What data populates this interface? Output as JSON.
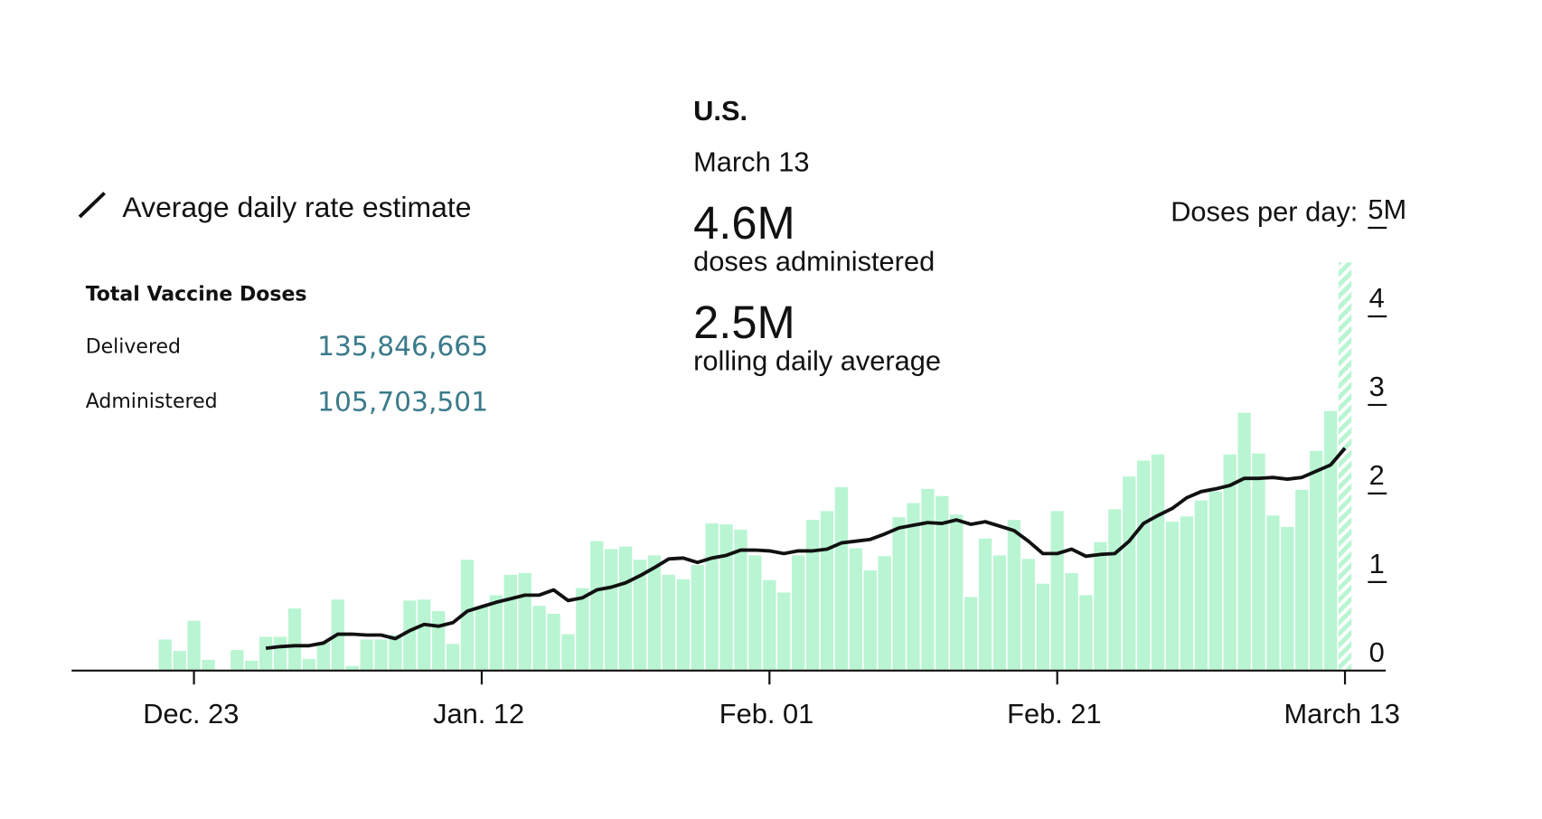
{
  "chart_data": {
    "type": "bar",
    "legend": "Average daily rate estimate",
    "summary": {
      "title": "Total Vaccine Doses",
      "rows": [
        [
          "Delivered",
          "135,846,665"
        ],
        [
          "Administered",
          "105,703,501"
        ]
      ]
    },
    "tooltip": {
      "region": "U.S.",
      "date": "March 13",
      "items": [
        {
          "value": "4.6M",
          "label": "doses administered"
        },
        {
          "value": "2.5M",
          "label": "rolling daily average"
        }
      ]
    },
    "y_label": "Doses per day:",
    "categories": [
      null,
      null,
      "Dec. 23",
      null,
      null,
      null,
      null,
      null,
      null,
      null,
      null,
      null,
      null,
      null,
      null,
      null,
      null,
      null,
      null,
      null,
      null,
      null,
      "Jan. 12",
      null,
      null,
      null,
      null,
      null,
      null,
      null,
      null,
      null,
      null,
      null,
      null,
      null,
      null,
      null,
      null,
      null,
      null,
      null,
      "Feb. 01",
      null,
      null,
      null,
      null,
      null,
      null,
      null,
      null,
      null,
      null,
      null,
      null,
      null,
      null,
      null,
      null,
      null,
      null,
      null,
      "Feb. 21",
      null,
      null,
      null,
      null,
      null,
      null,
      null,
      null,
      null,
      null,
      null,
      null,
      null,
      null,
      null,
      null,
      null,
      null,
      null,
      "March 13"
    ],
    "series": [
      {
        "type": "bar",
        "color": "#b9f5d3",
        "hatch_last": true,
        "values": [
          0.34,
          0.21,
          0.55,
          0.11,
          0,
          0.22,
          0.1,
          0.37,
          0.37,
          0.69,
          0.12,
          0.31,
          0.79,
          0.04,
          0.34,
          0.34,
          0.39,
          0.78,
          0.79,
          0.66,
          0.29,
          1.24,
          0.71,
          0.84,
          1.07,
          1.09,
          0.72,
          0.63,
          0.4,
          0.92,
          1.45,
          1.36,
          1.39,
          1.24,
          1.29,
          1.07,
          1.02,
          1.18,
          1.65,
          1.64,
          1.58,
          1.29,
          1.01,
          0.87,
          1.29,
          1.69,
          1.79,
          2.06,
          1.37,
          1.12,
          1.28,
          1.72,
          1.88,
          2.04,
          1.96,
          1.75,
          0.82,
          1.48,
          1.29,
          1.69,
          1.25,
          0.97,
          1.79,
          1.09,
          0.84,
          1.44,
          1.81,
          2.18,
          2.36,
          2.43,
          1.67,
          1.73,
          1.91,
          2.01,
          2.43,
          2.9,
          2.44,
          1.74,
          1.61,
          2.03,
          2.47,
          2.92,
          4.6
        ]
      },
      {
        "type": "line",
        "name": "Average daily rate estimate",
        "color": "#111111",
        "values": [
          null,
          null,
          null,
          null,
          null,
          null,
          null,
          0.24,
          0.26,
          0.27,
          0.27,
          0.3,
          0.4,
          0.4,
          0.39,
          0.39,
          0.35,
          0.44,
          0.51,
          0.49,
          0.53,
          0.66,
          0.71,
          0.76,
          0.8,
          0.84,
          0.84,
          0.9,
          0.78,
          0.81,
          0.9,
          0.93,
          0.98,
          1.06,
          1.15,
          1.25,
          1.26,
          1.21,
          1.26,
          1.29,
          1.35,
          1.35,
          1.34,
          1.31,
          1.34,
          1.34,
          1.36,
          1.43,
          1.45,
          1.47,
          1.53,
          1.6,
          1.63,
          1.66,
          1.65,
          1.69,
          1.64,
          1.67,
          1.62,
          1.57,
          1.45,
          1.31,
          1.31,
          1.36,
          1.28,
          1.3,
          1.31,
          1.45,
          1.65,
          1.74,
          1.82,
          1.94,
          2.01,
          2.04,
          2.08,
          2.16,
          2.16,
          2.17,
          2.15,
          2.17,
          2.24,
          2.31,
          2.5
        ]
      }
    ],
    "ylim": [
      0,
      5
    ],
    "yticks": [
      0,
      1,
      2,
      3,
      4,
      {
        "value": 5,
        "label": "5M"
      }
    ]
  }
}
